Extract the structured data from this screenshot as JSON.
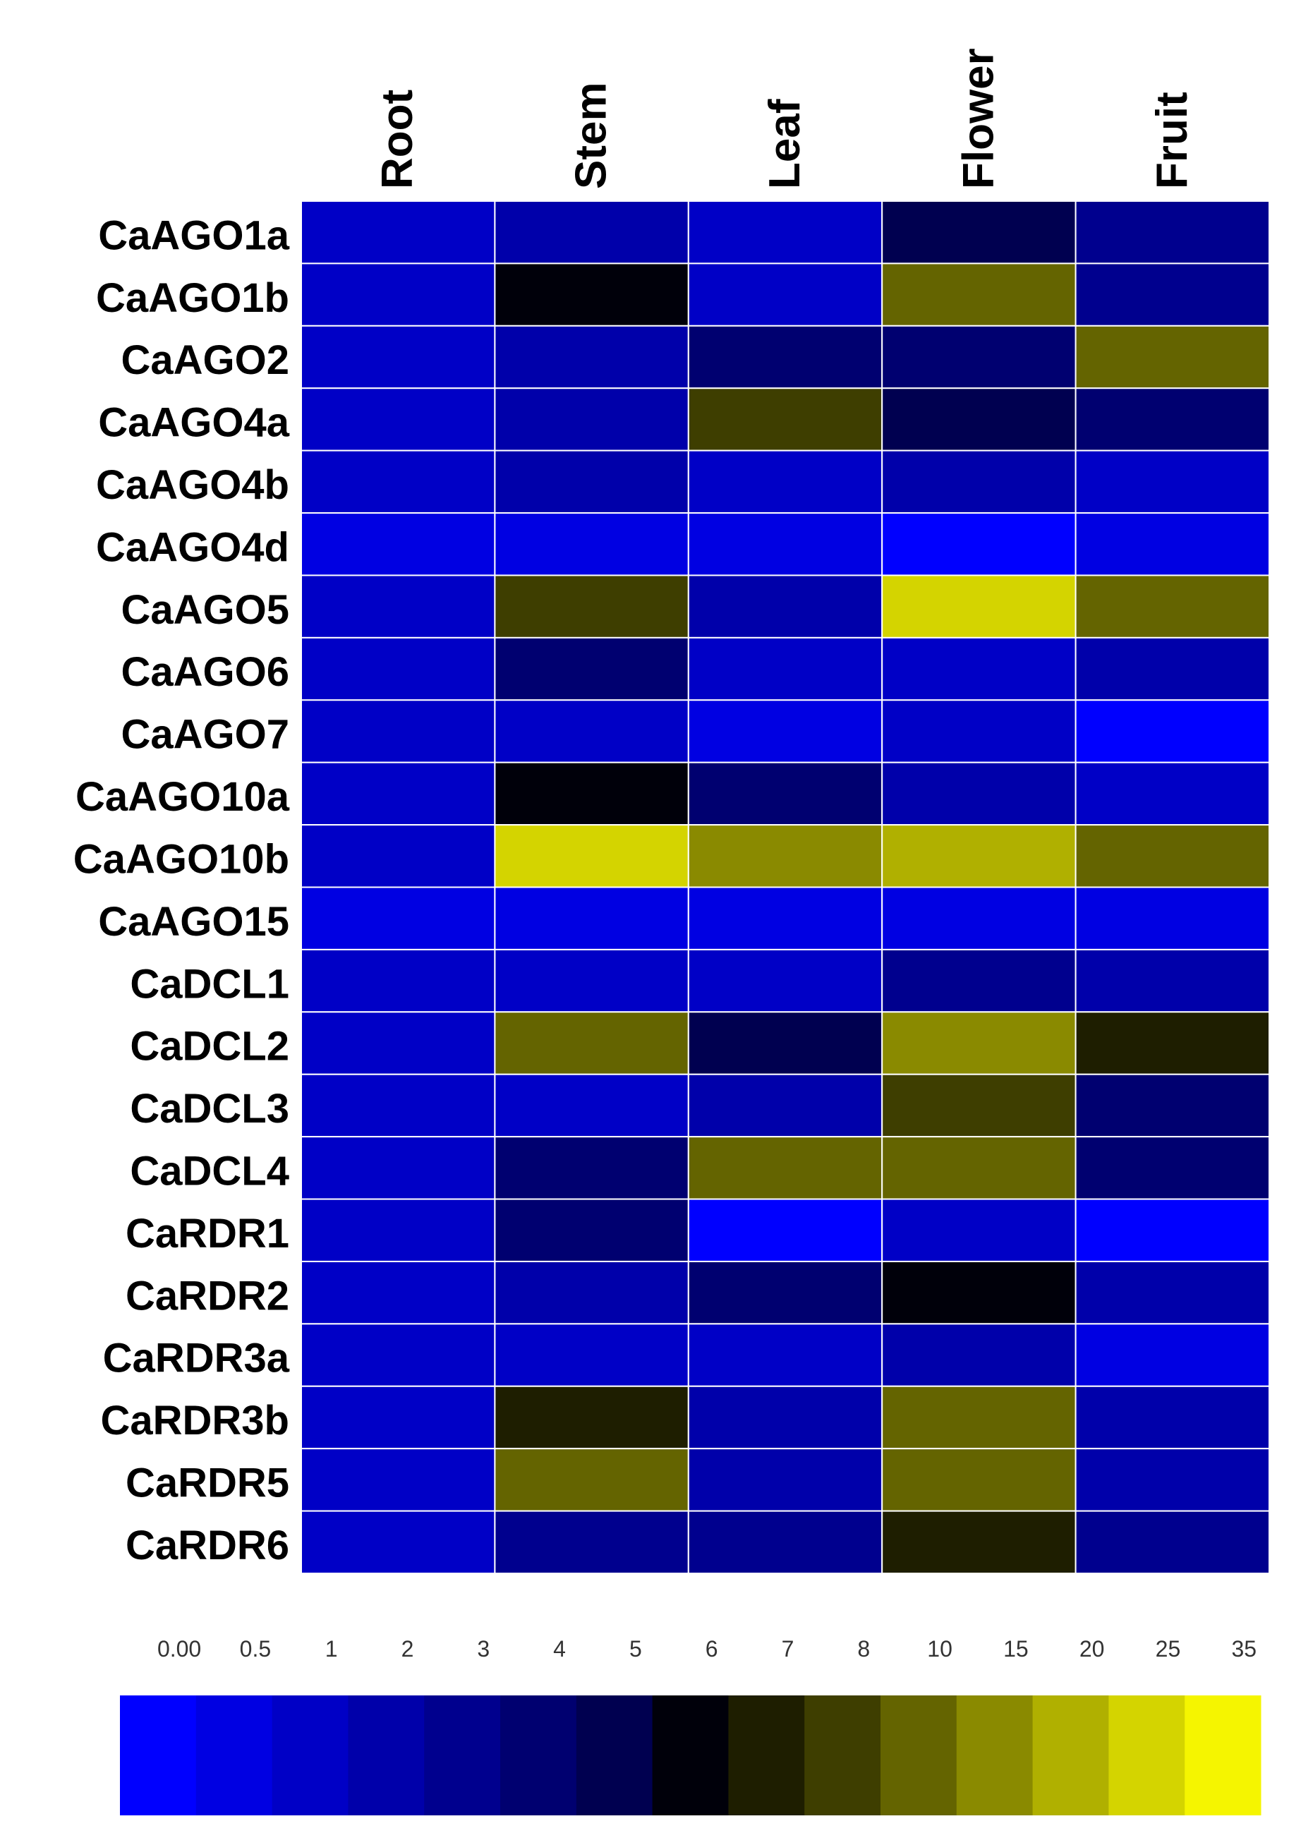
{
  "chart_data": {
    "type": "heatmap",
    "columns": [
      "Root",
      "Stem",
      "Leaf",
      "Flower",
      "Fruit"
    ],
    "rows": [
      "CaAGO1a",
      "CaAGO1b",
      "CaAGO2",
      "CaAGO4a",
      "CaAGO4b",
      "CaAGO4d",
      "CaAGO5",
      "CaAGO6",
      "CaAGO7",
      "CaAGO10a",
      "CaAGO10b",
      "CaAGO15",
      "CaDCL1",
      "CaDCL2",
      "CaDCL3",
      "CaDCL4",
      "CaRDR1",
      "CaRDR2",
      "CaRDR3a",
      "CaRDR3b",
      "CaRDR5",
      "CaRDR6"
    ],
    "values": [
      [
        1,
        2,
        1,
        5,
        3
      ],
      [
        1,
        6,
        1,
        10,
        3
      ],
      [
        1,
        2,
        4,
        4,
        10
      ],
      [
        1,
        2,
        8,
        5,
        4
      ],
      [
        1,
        2,
        1,
        2,
        1
      ],
      [
        0.5,
        0.5,
        0.5,
        0,
        0.5
      ],
      [
        1,
        8,
        2,
        25,
        10
      ],
      [
        1,
        4,
        1,
        1,
        2
      ],
      [
        1,
        1,
        0.5,
        1,
        0
      ],
      [
        1,
        6,
        4,
        2,
        1
      ],
      [
        1,
        25,
        15,
        20,
        10
      ],
      [
        0.5,
        0.5,
        0.5,
        0.5,
        0.5
      ],
      [
        1,
        1,
        1,
        3,
        2
      ],
      [
        1,
        10,
        5,
        15,
        7
      ],
      [
        1,
        1,
        2,
        8,
        4
      ],
      [
        1,
        4,
        10,
        10,
        4
      ],
      [
        1,
        4,
        0,
        1,
        0
      ],
      [
        1,
        2,
        4,
        6,
        2
      ],
      [
        1,
        1,
        1,
        2,
        0.5
      ],
      [
        1,
        7,
        2,
        10,
        2
      ],
      [
        1,
        10,
        2,
        10,
        2
      ],
      [
        1,
        3,
        3,
        7,
        3
      ]
    ],
    "colorbar": {
      "ticks": [
        {
          "value": 0,
          "label": "0.00"
        },
        0.5,
        1,
        2,
        3,
        4,
        5,
        6,
        7,
        8,
        10,
        15,
        20,
        25,
        35
      ],
      "colors": [
        "#0000ff",
        "#0000e2",
        "#0000c6",
        "#0000aa",
        "#00008e",
        "#000070",
        "#000050",
        "#00000a",
        "#1e1e00",
        "#3e3e00",
        "#646400",
        "#8a8a00",
        "#b0b000",
        "#d4d400",
        "#f5f500"
      ]
    }
  }
}
